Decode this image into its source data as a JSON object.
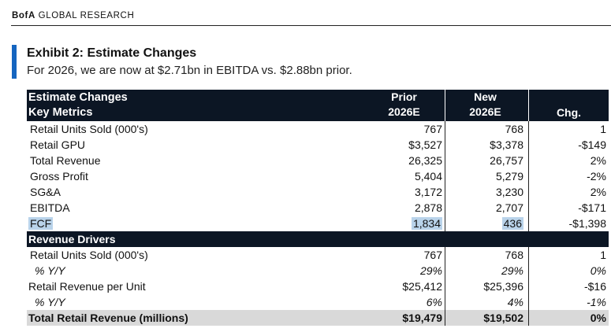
{
  "brand": {
    "bold": "BofA",
    "rest": " GLOBAL RESEARCH"
  },
  "exhibit": {
    "title": "Exhibit 2: Estimate Changes",
    "subtitle": "For 2026, we are now at $2.71bn in EBITDA vs. $2.88bn prior."
  },
  "colors": {
    "header_bg": "#0c1624",
    "accent": "#1565c0",
    "highlight": "#b9d3ea",
    "total_bg": "#d9d9d9"
  },
  "table": {
    "header": {
      "title1": "Estimate Changes",
      "title2": "Key Metrics",
      "prior_top": "Prior",
      "prior_bottom": "2026E",
      "new_top": "New",
      "new_bottom": "2026E",
      "chg": "Chg."
    },
    "key_metrics": [
      {
        "label": "Retail Units Sold (000's)",
        "prior": "767",
        "new": "768",
        "chg": "1"
      },
      {
        "label": "Retail GPU",
        "prior": "$3,527",
        "new": "$3,378",
        "chg": "-$149"
      },
      {
        "label": "Total Revenue",
        "prior": "26,325",
        "new": "26,757",
        "chg": "2%"
      },
      {
        "label": "Gross Profit",
        "prior": "5,404",
        "new": "5,279",
        "chg": "-2%"
      },
      {
        "label": "SG&A",
        "prior": "3,172",
        "new": "3,230",
        "chg": "2%"
      },
      {
        "label": "EBITDA",
        "prior": "2,878",
        "new": "2,707",
        "chg": "-$171"
      },
      {
        "label": "FCF",
        "prior": "1,834",
        "new": "436",
        "chg": "-$1,398"
      }
    ],
    "section2": "Revenue Drivers",
    "drivers": [
      {
        "label": "Retail Units Sold (000's)",
        "prior": "767",
        "new": "768",
        "chg": "1"
      },
      {
        "label": "% Y/Y",
        "prior": "29%",
        "new": "29%",
        "chg": "0%"
      },
      {
        "label": "Retail Revenue per Unit",
        "prior": "$25,412",
        "new": "$25,396",
        "chg": "-$16"
      },
      {
        "label": "% Y/Y",
        "prior": "6%",
        "new": "4%",
        "chg": "-1%"
      }
    ],
    "total": {
      "label": "Total Retail Revenue (millions)",
      "prior": "$19,479",
      "new": "$19,502",
      "chg": "0%"
    }
  }
}
